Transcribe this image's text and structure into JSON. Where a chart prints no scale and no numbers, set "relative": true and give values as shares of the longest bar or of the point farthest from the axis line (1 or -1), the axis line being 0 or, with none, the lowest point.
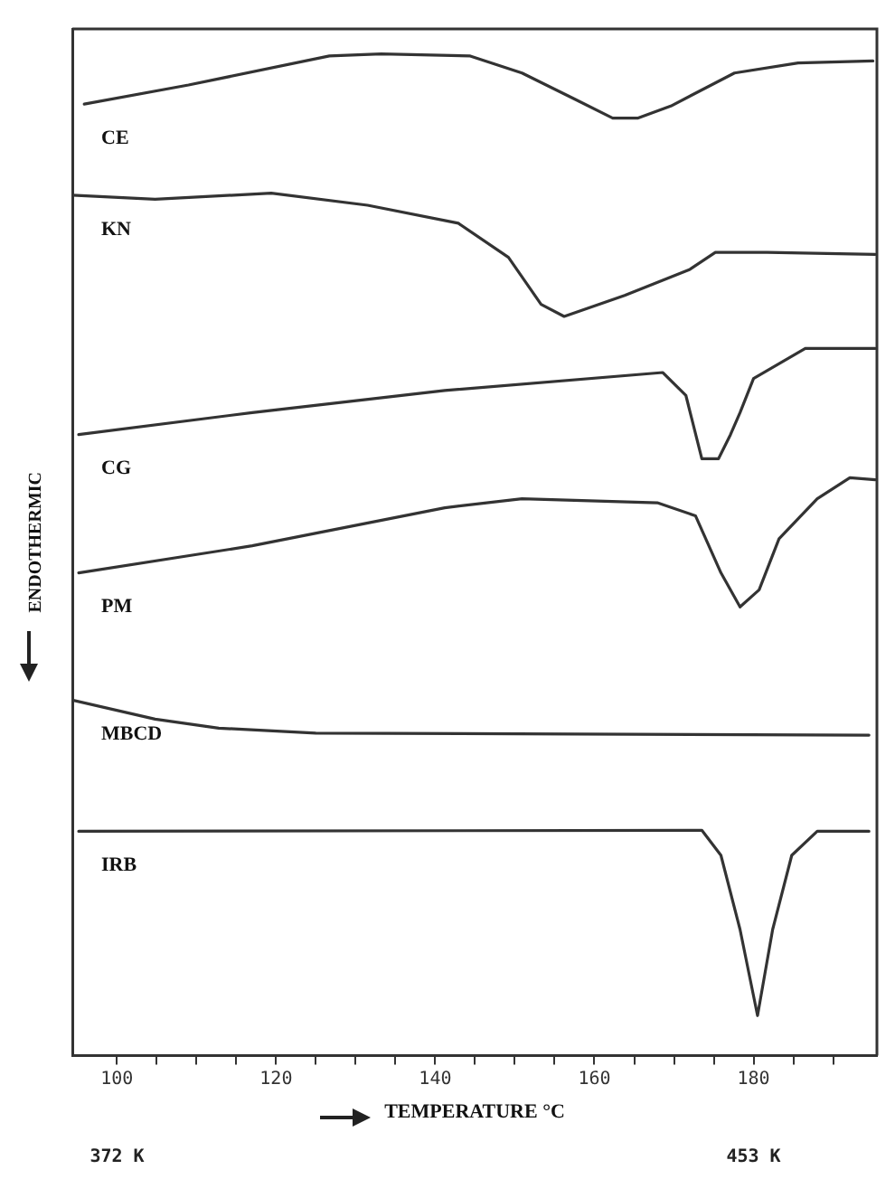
{
  "chart_data": {
    "type": "line",
    "relative": true,
    "xlabel": "TEMPERATURE °C",
    "ylabel": "ENDOTHERMIC",
    "xlim": [
      94.4,
      195.5
    ],
    "xticks": [
      100,
      {
        "value": 105,
        "label": null
      },
      {
        "value": 110,
        "label": null
      },
      {
        "value": 115,
        "label": null
      },
      120,
      {
        "value": 125,
        "label": null
      },
      {
        "value": 130,
        "label": null
      },
      {
        "value": 135,
        "label": null
      },
      140,
      {
        "value": 145,
        "label": null
      },
      {
        "value": 150,
        "label": null
      },
      {
        "value": 155,
        "label": null
      },
      160,
      {
        "value": 165,
        "label": null
      },
      {
        "value": 170,
        "label": null
      },
      {
        "value": 175,
        "label": null
      },
      180,
      {
        "value": 185,
        "label": null
      },
      {
        "value": 190,
        "label": null
      }
    ],
    "x2lim": [
      366.3,
      468.7
    ],
    "x2ticks": [
      {
        "value": 372,
        "label": "372 K"
      },
      {
        "value": 453,
        "label": "453 K"
      }
    ],
    "grid": false,
    "legend": false,
    "marker": "none",
    "line_style": "solid",
    "series": [
      {
        "name": "CE",
        "color": "#333333",
        "x": [
          95.9,
          109,
          126.7,
          133.2,
          144.4,
          150.9,
          157.5,
          162.3,
          165.5,
          169.6,
          177.6,
          185.6,
          195
        ],
        "values": [
          0.95,
          0.969,
          0.998,
          1.0,
          0.998,
          0.981,
          0.955,
          0.936,
          0.936,
          0.948,
          0.981,
          0.991,
          0.993
        ]
      },
      {
        "name": "KN",
        "color": "#333333",
        "x": [
          94.4,
          104.8,
          119.4,
          131.5,
          142.9,
          149.2,
          153.3,
          156.2,
          163.8,
          172,
          175.2,
          181.7,
          195.3
        ],
        "values": [
          0.859,
          0.855,
          0.861,
          0.849,
          0.831,
          0.797,
          0.75,
          0.738,
          0.759,
          0.785,
          0.802,
          0.802,
          0.8
        ]
      },
      {
        "name": "CG",
        "color": "#333333",
        "x": [
          95.2,
          117,
          141.2,
          168.6,
          171.5,
          173.5,
          175.6,
          177.1,
          178.3,
          180,
          186.5,
          195.3
        ],
        "values": [
          0.62,
          0.642,
          0.664,
          0.682,
          0.659,
          0.596,
          0.596,
          0.62,
          0.642,
          0.676,
          0.706,
          0.706
        ]
      },
      {
        "name": "PM",
        "color": "#333333",
        "x": [
          95.2,
          117,
          141.2,
          150.9,
          167.9,
          172.7,
          175.9,
          178.3,
          180.7,
          183.2,
          188,
          192.1,
          195.3
        ],
        "values": [
          0.482,
          0.509,
          0.547,
          0.556,
          0.552,
          0.539,
          0.482,
          0.448,
          0.465,
          0.516,
          0.556,
          0.577,
          0.575
        ]
      },
      {
        "name": "MBCD",
        "color": "#333333",
        "x": [
          94.4,
          104.8,
          112.8,
          125,
          194.5
        ],
        "values": [
          0.355,
          0.336,
          0.327,
          0.322,
          0.32
        ]
      },
      {
        "name": "IRB",
        "color": "#333333",
        "x": [
          95.2,
          173.5,
          175.9,
          178.3,
          180.5,
          182.4,
          184.8,
          188,
          194.5
        ],
        "values": [
          0.224,
          0.225,
          0.2,
          0.126,
          0.04,
          0.126,
          0.2,
          0.224,
          0.224
        ]
      }
    ]
  }
}
